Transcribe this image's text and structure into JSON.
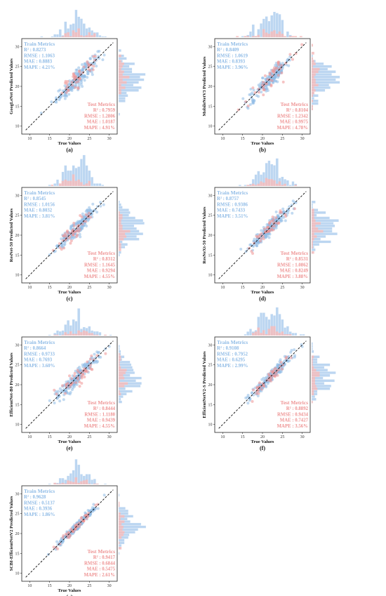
{
  "colors": {
    "train": "#8fbbe6",
    "test": "#ee9393",
    "hist_train": "#bcd6f1",
    "hist_test": "#f4bcbc",
    "fit_line": "#111111"
  },
  "common": {
    "xlabel": "True Values",
    "train_heading": "Train Metrics",
    "test_heading": "Test Metrics",
    "r2_label": "R² :",
    "rmse_label": "RMSE :",
    "mae_label": "MAE :",
    "mape_label": "MAPE :"
  },
  "chart_data": [
    {
      "type": "scatter",
      "caption": "(a)",
      "ylabel": "GoogLeNet Predicted Values",
      "xlabel": "True Values",
      "xlim": [
        8,
        32
      ],
      "ylim": [
        8,
        32
      ],
      "x_ticks": [
        "10",
        "15",
        "20",
        "25",
        "30"
      ],
      "y_ticks": [
        "10",
        "15",
        "20",
        "25",
        "30"
      ],
      "reference_line": "y = x",
      "train_metrics": {
        "r2": "0.8273",
        "rmse": "1.1063",
        "mae": "0.8883",
        "mape": "4.21%"
      },
      "test_metrics": {
        "r2": "0.7959",
        "rmse": "1.2806",
        "mae": "1.0187",
        "mape": "4.91%"
      }
    },
    {
      "type": "scatter",
      "caption": "(b)",
      "ylabel": "MobileNetV3 Predicted Values",
      "xlabel": "True Values",
      "xlim": [
        8,
        32
      ],
      "ylim": [
        8,
        32
      ],
      "x_ticks": [
        "10",
        "15",
        "20",
        "25",
        "30"
      ],
      "y_ticks": [
        "10",
        "15",
        "20",
        "25",
        "30"
      ],
      "reference_line": "y = x",
      "train_metrics": {
        "r2": "0.8409",
        "rmse": "1.0619",
        "mae": "0.8393",
        "mape": "3.96%"
      },
      "test_metrics": {
        "r2": "0.8104",
        "rmse": "1.2342",
        "mae": "0.9975",
        "mape": "4.78%"
      }
    },
    {
      "type": "scatter",
      "caption": "(c)",
      "ylabel": "ResNet-50 Predicted Values",
      "xlabel": "True Values",
      "xlim": [
        8,
        32
      ],
      "ylim": [
        8,
        32
      ],
      "x_ticks": [
        "10",
        "15",
        "20",
        "25",
        "30"
      ],
      "y_ticks": [
        "10",
        "15",
        "20",
        "25",
        "30"
      ],
      "reference_line": "y = x",
      "train_metrics": {
        "r2": "0.8545",
        "rmse": "1.0156",
        "mae": "0.8032",
        "mape": "3.81%"
      },
      "test_metrics": {
        "r2": "0.8312",
        "rmse": "1.1645",
        "mae": "0.9294",
        "mape": "4.55%"
      }
    },
    {
      "type": "scatter",
      "caption": "(d)",
      "ylabel": "ResNeXt-50 Predicted Values",
      "xlabel": "True Values",
      "xlim": [
        8,
        32
      ],
      "ylim": [
        8,
        32
      ],
      "x_ticks": [
        "10",
        "15",
        "20",
        "25",
        "30"
      ],
      "y_ticks": [
        "10",
        "15",
        "20",
        "25",
        "30"
      ],
      "reference_line": "y = x",
      "train_metrics": {
        "r2": "0.8757",
        "rmse": "0.9386",
        "mae": "0.7433",
        "mape": "3.51%"
      },
      "test_metrics": {
        "r2": "0.8531",
        "rmse": "1.0862",
        "mae": "0.8249",
        "mape": "3.88%"
      }
    },
    {
      "type": "scatter",
      "caption": "(e)",
      "ylabel": "EfficientNet-B0 Predicted Values",
      "xlabel": "True Values",
      "xlim": [
        8,
        32
      ],
      "ylim": [
        8,
        32
      ],
      "x_ticks": [
        "10",
        "15",
        "20",
        "25",
        "30"
      ],
      "y_ticks": [
        "10",
        "15",
        "20",
        "25",
        "30"
      ],
      "reference_line": "y = x",
      "train_metrics": {
        "r2": "0.8664",
        "rmse": "0.9733",
        "mae": "0.7693",
        "mape": "3.60%"
      },
      "test_metrics": {
        "r2": "0.8444",
        "rmse": "1.1180",
        "mae": "0.9439",
        "mape": "4.55%"
      }
    },
    {
      "type": "scatter",
      "caption": "(f)",
      "ylabel": "EfficientNetV2-S Predicted Values",
      "xlabel": "True Values",
      "xlim": [
        8,
        32
      ],
      "ylim": [
        8,
        32
      ],
      "x_ticks": [
        "10",
        "15",
        "20",
        "25",
        "30"
      ],
      "y_ticks": [
        "10",
        "15",
        "20",
        "25",
        "30"
      ],
      "reference_line": "y = x",
      "train_metrics": {
        "r2": "0.9108",
        "rmse": "0.7952",
        "mae": "0.6295",
        "mape": "2.99%"
      },
      "test_metrics": {
        "r2": "0.8892",
        "rmse": "0.9434",
        "mae": "0.7427",
        "mape": "3.56%"
      }
    },
    {
      "type": "scatter",
      "caption": "(g)",
      "ylabel": "SCBI-EfficientNetV2 Predicted Values",
      "xlabel": "True Values",
      "xlim": [
        8,
        32
      ],
      "ylim": [
        8,
        32
      ],
      "x_ticks": [
        "10",
        "15",
        "20",
        "25",
        "30"
      ],
      "y_ticks": [
        "10",
        "15",
        "20",
        "25",
        "30"
      ],
      "reference_line": "y = x",
      "train_metrics": {
        "r2": "0.9628",
        "rmse": "0.5137",
        "mae": "0.3936",
        "mape": "1.86%"
      },
      "test_metrics": {
        "r2": "0.9417",
        "rmse": "0.6844",
        "mae": "0.5475",
        "mape": "2.61%"
      }
    }
  ]
}
